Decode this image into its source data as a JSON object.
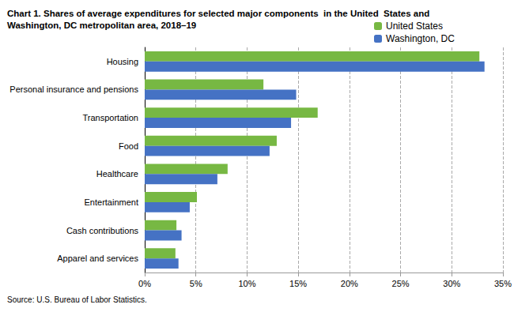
{
  "chart_data": {
    "type": "bar",
    "orientation": "horizontal",
    "title": "Chart 1. Shares of average expenditures for selected major components  in the United  States and\nWashington, DC metropolitan area, 2018–19",
    "source": "Source: U.S. Bureau of Labor Statistics.",
    "categories": [
      "Housing",
      "Personal insurance and pensions",
      "Transportation",
      "Food",
      "Healthcare",
      "Entertainment",
      "Cash contributions",
      "Apparel and services"
    ],
    "series": [
      {
        "name": "United States",
        "color": "#77b843",
        "values": [
          32.7,
          11.6,
          16.9,
          12.9,
          8.1,
          5.1,
          3.1,
          3.0
        ]
      },
      {
        "name": "Washington, DC",
        "color": "#4572c4",
        "values": [
          33.2,
          14.8,
          14.3,
          12.2,
          7.1,
          4.4,
          3.6,
          3.3
        ]
      }
    ],
    "xlim": [
      0,
      35
    ],
    "xticks": [
      {
        "value": 0,
        "label": "0%"
      },
      {
        "value": 5,
        "label": "5%"
      },
      {
        "value": 10,
        "label": "10%"
      },
      {
        "value": 15,
        "label": "15%"
      },
      {
        "value": 20,
        "label": "20%"
      },
      {
        "value": 25,
        "label": "25%"
      },
      {
        "value": 30,
        "label": "30%"
      },
      {
        "value": 35,
        "label": "35%"
      }
    ],
    "grid": true,
    "legend": "top"
  }
}
